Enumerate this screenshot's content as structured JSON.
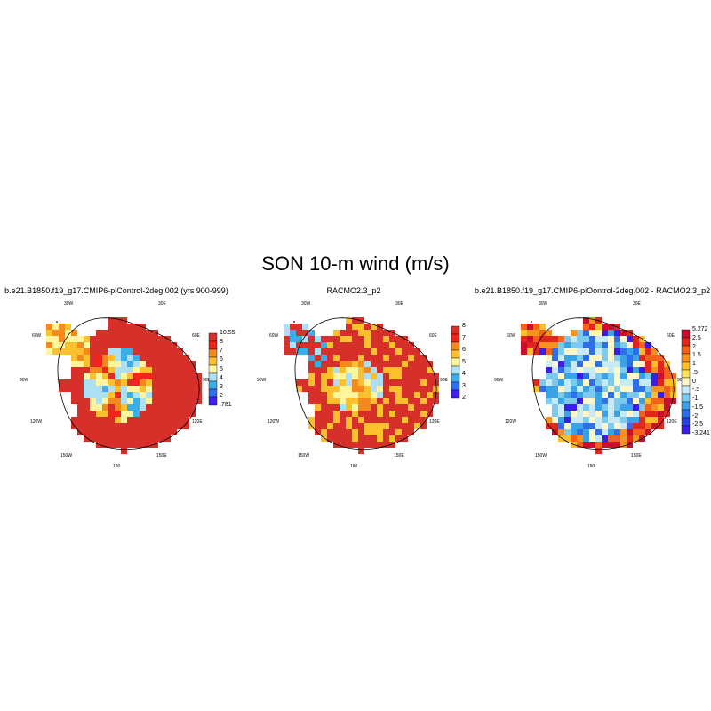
{
  "figure": {
    "title": "SON 10-m wind (m/s)"
  },
  "lon_labels": [
    "30W",
    "30E",
    "60W",
    "60E",
    "90W",
    "90E",
    "120W",
    "120E",
    "150W",
    "150E",
    "180"
  ],
  "panels": [
    {
      "title": "b.e21.B1850.f19_g17.CMIP6-plControl-2deg.002 (yrs 900-999)",
      "colorbar": {
        "labels": [
          "10.55",
          "8",
          "7",
          "6",
          "5",
          "4",
          "3",
          "2",
          ".781"
        ],
        "colors": [
          "#d7302a",
          "#f4241a",
          "#f48a1e",
          "#fbc02d",
          "#fff59d",
          "#aee0f5",
          "#3aaee8",
          "#2f6ef2",
          "#4020f0"
        ]
      }
    },
    {
      "title": "RACMO2.3_p2",
      "colorbar": {
        "labels": [
          "8",
          "7",
          "6",
          "5",
          "4",
          "3",
          "2"
        ],
        "colors": [
          "#d7302a",
          "#f4241a",
          "#f48a1e",
          "#fbc02d",
          "#fff59d",
          "#aee0f5",
          "#3aaee8",
          "#2f6ef2",
          "#4020f0"
        ]
      }
    },
    {
      "title": "b.e21.B1850.f19_g17.CMIP6-piOontrol-2deg.002 - RACMO2.3_p2",
      "colorbar": {
        "labels": [
          "5.272",
          "2.5",
          "2",
          "1.5",
          "1",
          ".5",
          "0",
          "-.5",
          "-1",
          "-1.5",
          "-2",
          "-2.5",
          "-3.241"
        ],
        "colors": [
          "#c8102e",
          "#e3261d",
          "#f4611a",
          "#f69320",
          "#fbbf2c",
          "#fde25c",
          "#fff7c8",
          "#c8eaf6",
          "#7ccbee",
          "#3aa3e6",
          "#2d6fe8",
          "#2a3fe4",
          "#3a1ee6"
        ]
      }
    }
  ]
}
